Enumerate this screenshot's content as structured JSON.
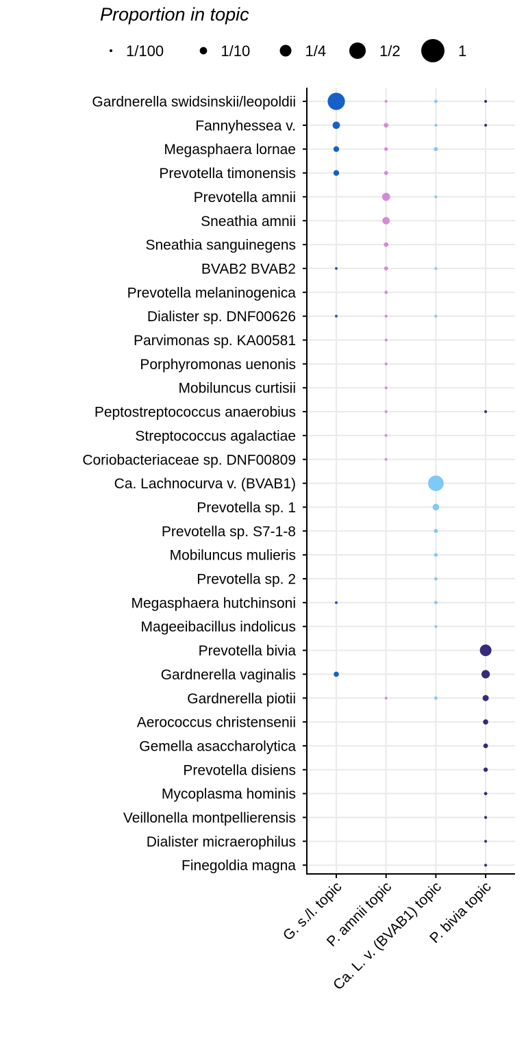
{
  "chart_data": {
    "type": "scatter",
    "subtype": "dot-plot",
    "legend": {
      "title": "Proportion in topic",
      "placement": "top",
      "entries": [
        {
          "label": "1/100",
          "value": 0.01
        },
        {
          "label": "1/10",
          "value": 0.1
        },
        {
          "label": "1/4",
          "value": 0.25
        },
        {
          "label": "1/2",
          "value": 0.5
        },
        {
          "label": "1",
          "value": 1
        }
      ]
    },
    "x_categories": [
      "G. s./l. topic",
      "P. amnii topic",
      "Ca. L. v. (BVAB1) topic",
      "P. bivia topic"
    ],
    "series_colors": [
      "#1660c8",
      "#d689da",
      "#7ec9f5",
      "#362a7a"
    ],
    "y_categories": [
      "Gardnerella swidsinskii/leopoldii",
      "Fannyhessea v.",
      "Megasphaera lornae",
      "Prevotella timonensis",
      "Prevotella amnii",
      "Sneathia amnii",
      "Sneathia sanguinegens",
      "BVAB2 BVAB2",
      "Prevotella melaninogenica",
      "Dialister sp. DNF00626",
      "Parvimonas sp. KA00581",
      "Porphyromonas uenonis",
      "Mobiluncus curtisii",
      "Peptostreptococcus anaerobius",
      "Streptococcus agalactiae",
      "Coriobacteriaceae sp. DNF00809",
      "Ca. Lachnocurva v. (BVAB1)",
      "Prevotella sp. 1",
      "Prevotella sp. S7-1-8",
      "Mobiluncus mulieris",
      "Prevotella sp. 2",
      "Megasphaera hutchinsoni",
      "Mageeibacillus indolicus",
      "Prevotella bivia",
      "Gardnerella vaginalis",
      "Gardnerella piotii",
      "Aerococcus christensenii",
      "Gemella asaccharolytica",
      "Prevotella disiens",
      "Mycoplasma hominis",
      "Veillonella montpellierensis",
      "Dialister micraerophilus",
      "Finegoldia magna"
    ],
    "values": [
      [
        0.55,
        0.008,
        0.02,
        0.01
      ],
      [
        0.1,
        0.04,
        0.008,
        0.007
      ],
      [
        0.06,
        0.025,
        0.03,
        0
      ],
      [
        0.06,
        0.03,
        0,
        0
      ],
      [
        0,
        0.12,
        0.009,
        0
      ],
      [
        0,
        0.1,
        0,
        0
      ],
      [
        0,
        0.04,
        0,
        0
      ],
      [
        0.01,
        0.03,
        0.01,
        0
      ],
      [
        0,
        0.02,
        0,
        0
      ],
      [
        0.006,
        0.015,
        0.009,
        0
      ],
      [
        0,
        0.015,
        0,
        0
      ],
      [
        0,
        0.012,
        0,
        0
      ],
      [
        0,
        0.01,
        0,
        0
      ],
      [
        0,
        0.009,
        0,
        0.007
      ],
      [
        0,
        0.009,
        0,
        0
      ],
      [
        0,
        0.008,
        0,
        0
      ],
      [
        0,
        0,
        0.45,
        0
      ],
      [
        0,
        0,
        0.08,
        0
      ],
      [
        0,
        0,
        0.03,
        0
      ],
      [
        0,
        0,
        0.025,
        0
      ],
      [
        0,
        0,
        0.02,
        0
      ],
      [
        0.007,
        0,
        0.02,
        0
      ],
      [
        0,
        0,
        0.01,
        0
      ],
      [
        0,
        0,
        0,
        0.25
      ],
      [
        0.05,
        0,
        0,
        0.13
      ],
      [
        0,
        0.008,
        0.02,
        0.07
      ],
      [
        0,
        0,
        0,
        0.05
      ],
      [
        0,
        0,
        0,
        0.04
      ],
      [
        0,
        0,
        0,
        0.035
      ],
      [
        0,
        0,
        0,
        0.02
      ],
      [
        0,
        0,
        0,
        0.015
      ],
      [
        0,
        0,
        0,
        0.012
      ],
      [
        0,
        0,
        0,
        0.01
      ]
    ]
  }
}
